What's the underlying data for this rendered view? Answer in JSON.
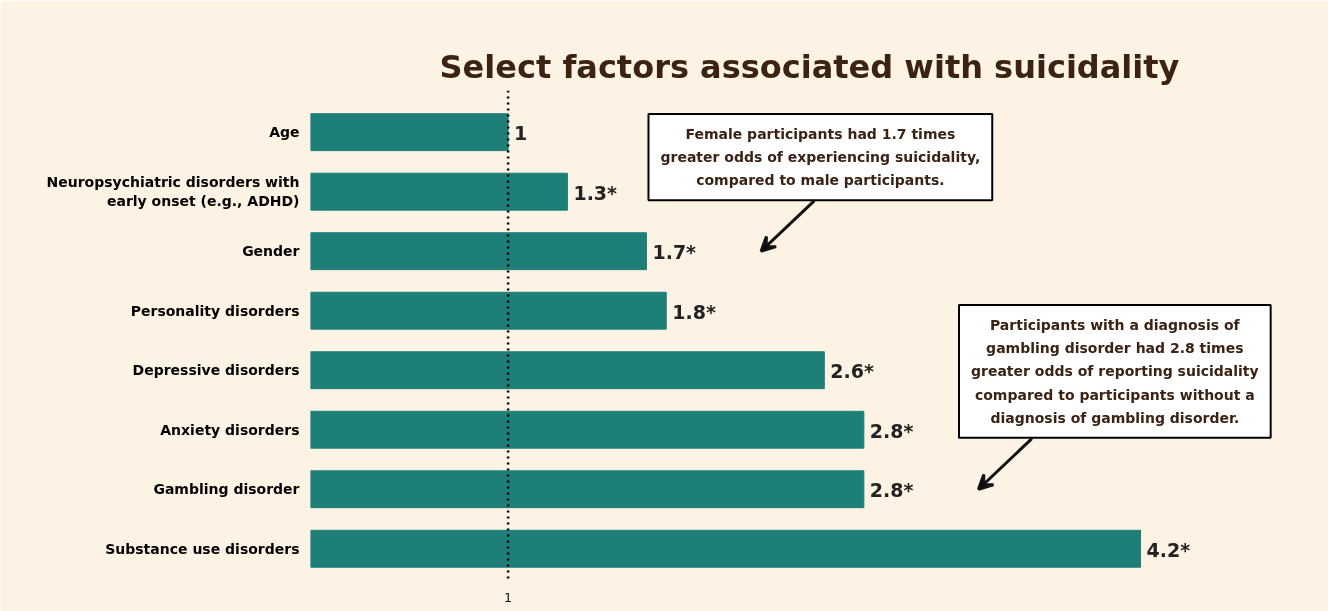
{
  "chart_data": {
    "type": "bar",
    "orientation": "horizontal",
    "title": "Select factors associated with suicidality",
    "categories": [
      "Age",
      "Neuropsychiatric disorders with\nearly onset (e.g., ADHD)",
      "Gender",
      "Personality disorders",
      "Depressive disorders",
      "Anxiety disorders",
      "Gambling disorder",
      "Substance use disorders"
    ],
    "values": [
      1,
      1.3,
      1.7,
      1.8,
      2.6,
      2.8,
      2.8,
      4.2
    ],
    "value_labels": [
      "1",
      "1.3*",
      "1.7*",
      "1.8*",
      "2.6*",
      "2.8*",
      "2.8*",
      "4.2*"
    ],
    "color": "#1e7f78",
    "xlim": [
      0,
      5.05
    ],
    "xticks": [
      1
    ],
    "ref_lines": [
      {
        "axis": "x",
        "value": 1,
        "line_style": "dotted",
        "color": "#000000"
      }
    ],
    "annotations": [
      "Female participants had 1.7 times\ngreater odds of experiencing suicidality,\ncompared to male participants.",
      "Participants with a diagnosis of\ngambling disorder had 2.8 times\ngreater odds of reporting suicidality\ncompared to participants without a\ndiagnosis of gambling disorder."
    ],
    "grid": false
  }
}
